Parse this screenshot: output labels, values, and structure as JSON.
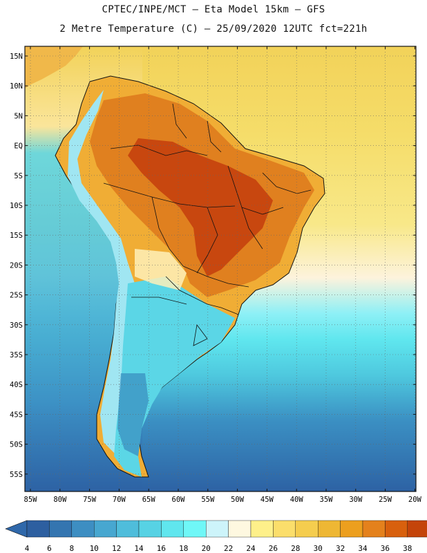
{
  "header": {
    "line1": "CPTEC/INPE/MCT –   Eta Model 15km – GFS",
    "line2": "2 Metre Temperature (C) – 25/09/2020 12UTC fct=221h"
  },
  "map": {
    "lat_labels": [
      "15N",
      "10N",
      "5N",
      "EQ",
      "5S",
      "10S",
      "15S",
      "20S",
      "25S",
      "30S",
      "35S",
      "40S",
      "45S",
      "50S",
      "55S"
    ],
    "lon_labels": [
      "85W",
      "80W",
      "75W",
      "70W",
      "65W",
      "60W",
      "55W",
      "50W",
      "45W",
      "40W",
      "35W",
      "30W",
      "25W",
      "20W"
    ],
    "ocean_north_color": "#f2d259",
    "land_colors": {
      "hot": "#c8470f",
      "warm": "#e0801f",
      "mild": "#f0ad35",
      "cool": "#5bd6e6",
      "cold": "#3a8fc0",
      "andes": "#a0e6f2"
    }
  },
  "colorbar": {
    "labels": [
      "4",
      "6",
      "8",
      "10",
      "12",
      "14",
      "16",
      "18",
      "20",
      "22",
      "24",
      "26",
      "28",
      "30",
      "32",
      "34",
      "36",
      "38"
    ],
    "colors": [
      "#2d5fa0",
      "#3475b0",
      "#3d8ec2",
      "#47a7d0",
      "#4fbddb",
      "#57d2e4",
      "#60e6ee",
      "#6ff7f7",
      "#cdf4fa",
      "#fef8e0",
      "#fef08a",
      "#fbde6b",
      "#f5cd4e",
      "#eeb734",
      "#ec9f1e",
      "#e4811c",
      "#d8600d",
      "#c4440a"
    ],
    "left_arrow_color": "#2f68aa",
    "right_arrow_color": "#b43a0c"
  }
}
